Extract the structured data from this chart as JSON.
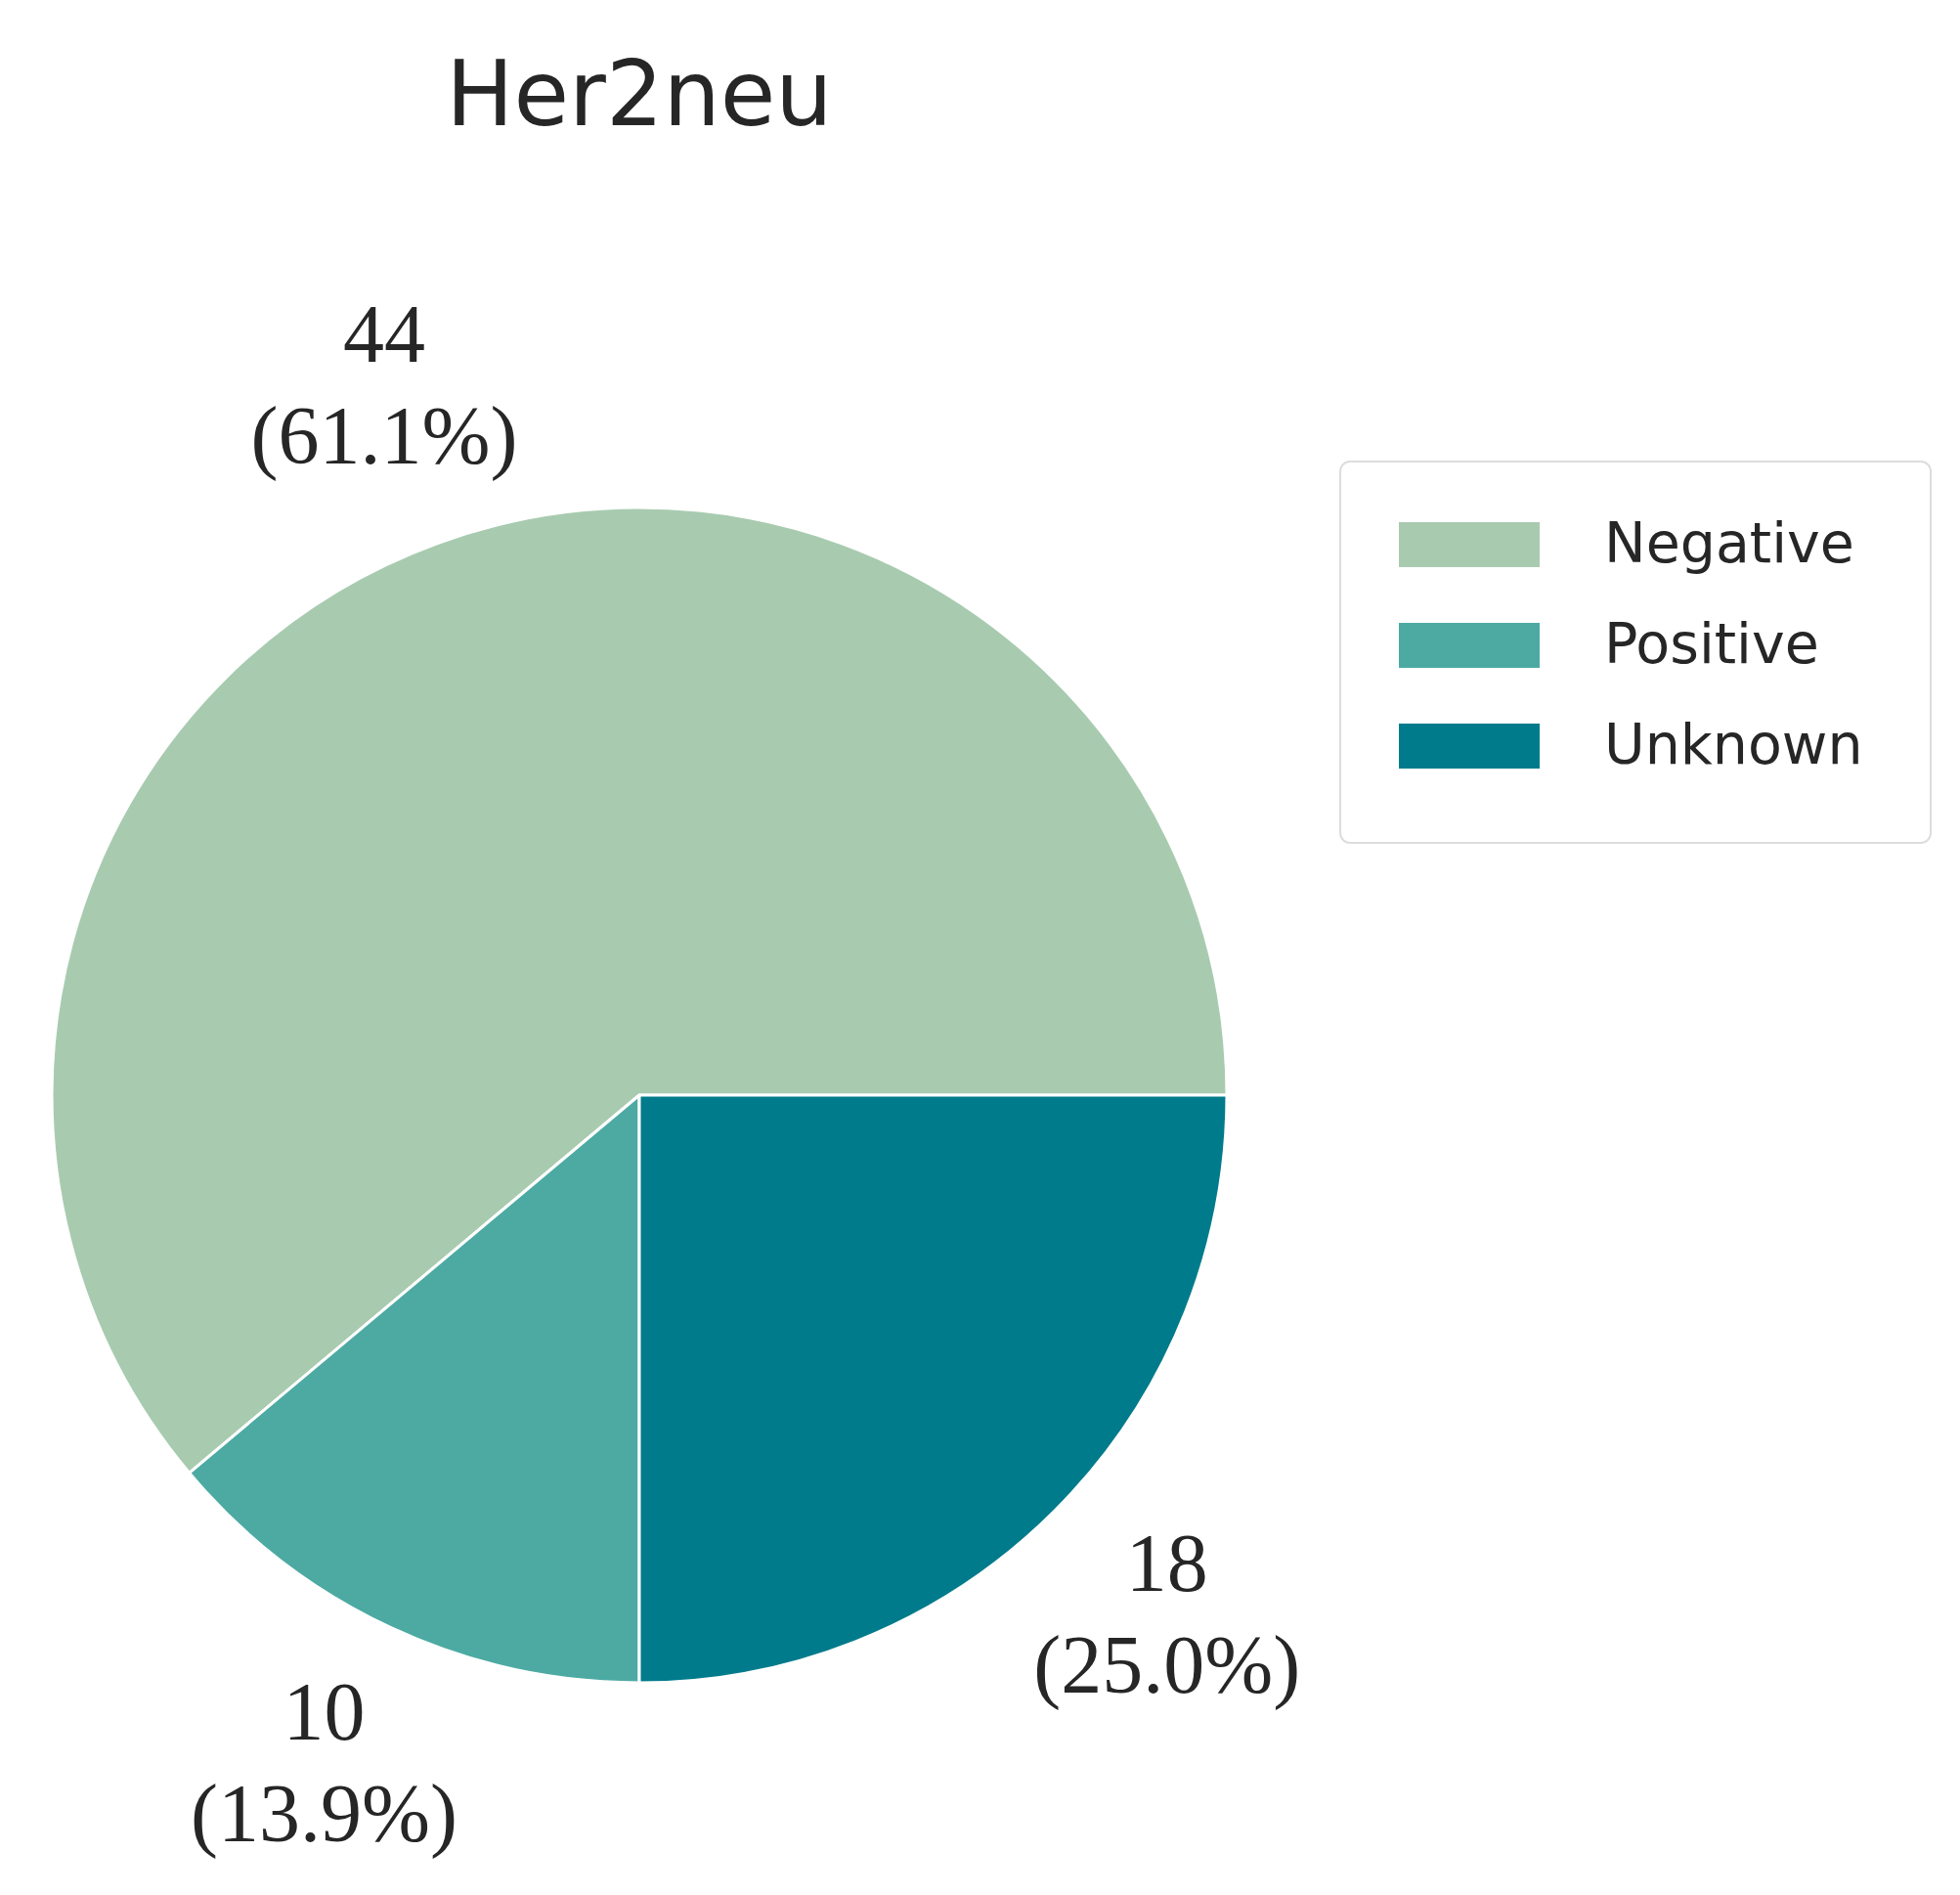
{
  "chart_data": {
    "type": "pie",
    "title": "Her2neu",
    "categories": [
      "Negative",
      "Positive",
      "Unknown"
    ],
    "values": [
      44,
      10,
      18
    ],
    "colors": [
      "#a8cbb0",
      "#4caaa3",
      "#007b8b"
    ],
    "value_labels": [
      "44\n(61.1%)",
      "10\n(13.9%)",
      "18\n(25.0%)"
    ],
    "legend": "top right"
  }
}
